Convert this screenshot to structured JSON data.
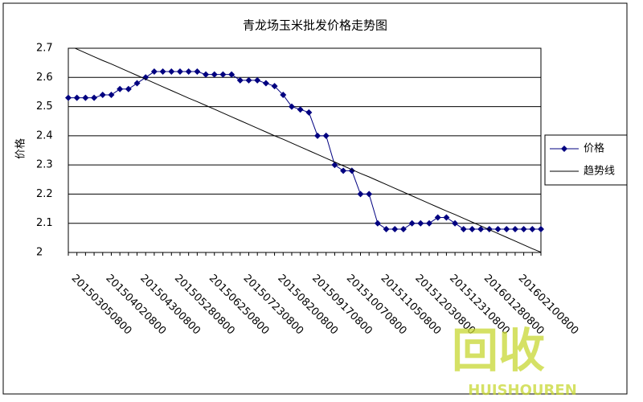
{
  "chart_data": {
    "type": "line",
    "title": "青龙场玉米批发价格走势图",
    "y_label": "价格",
    "categories": [
      "201503050800",
      null,
      null,
      null,
      "201504020800",
      null,
      null,
      null,
      "201504300800",
      null,
      null,
      null,
      "201505280800",
      null,
      null,
      null,
      "201506250800",
      null,
      null,
      null,
      "201507230800",
      null,
      null,
      null,
      "201508200800",
      null,
      null,
      null,
      "201509170800",
      null,
      null,
      null,
      "201510070800",
      null,
      null,
      null,
      "201511050800",
      null,
      null,
      null,
      "201512030800",
      null,
      null,
      null,
      "201512310800",
      null,
      null,
      null,
      "201601280800",
      null,
      null,
      null,
      "201602100800",
      null,
      null,
      null
    ],
    "series": [
      {
        "name": "价格",
        "color": "#000080",
        "marker": "diamond",
        "values": [
          2.53,
          2.53,
          2.53,
          2.53,
          2.54,
          2.54,
          2.56,
          2.56,
          2.58,
          2.6,
          2.62,
          2.62,
          2.62,
          2.62,
          2.62,
          2.62,
          2.61,
          2.61,
          2.61,
          2.61,
          2.59,
          2.59,
          2.59,
          2.58,
          2.57,
          2.54,
          2.5,
          2.49,
          2.48,
          2.4,
          2.4,
          2.3,
          2.28,
          2.28,
          2.2,
          2.2,
          2.1,
          2.08,
          2.08,
          2.08,
          2.1,
          2.1,
          2.1,
          2.12,
          2.12,
          2.1,
          2.08,
          2.08,
          2.08,
          2.08,
          2.08,
          2.08,
          2.08,
          2.08,
          2.08,
          2.08
        ]
      },
      {
        "name": "趋势线",
        "color": "#000000",
        "marker": "none",
        "values": [
          2.71,
          2.697,
          2.684,
          2.671,
          2.658,
          2.646,
          2.633,
          2.62,
          2.607,
          2.594,
          2.581,
          2.568,
          2.555,
          2.542,
          2.529,
          2.517,
          2.504,
          2.491,
          2.478,
          2.465,
          2.452,
          2.439,
          2.426,
          2.413,
          2.4,
          2.388,
          2.375,
          2.362,
          2.349,
          2.336,
          2.323,
          2.31,
          2.297,
          2.284,
          2.271,
          2.259,
          2.246,
          2.233,
          2.22,
          2.207,
          2.194,
          2.181,
          2.168,
          2.155,
          2.142,
          2.13,
          2.117,
          2.104,
          2.091,
          2.078,
          2.065,
          2.052,
          2.039,
          2.026,
          2.013,
          2.001
        ]
      }
    ],
    "ylim": [
      2,
      2.7
    ],
    "yticks": [
      2,
      2.1,
      2.2,
      2.3,
      2.4,
      2.5,
      2.6,
      2.7
    ],
    "grid": true,
    "legend": "right"
  },
  "watermark": {
    "text": "回收",
    "subtext": "HUISHOUREN"
  }
}
